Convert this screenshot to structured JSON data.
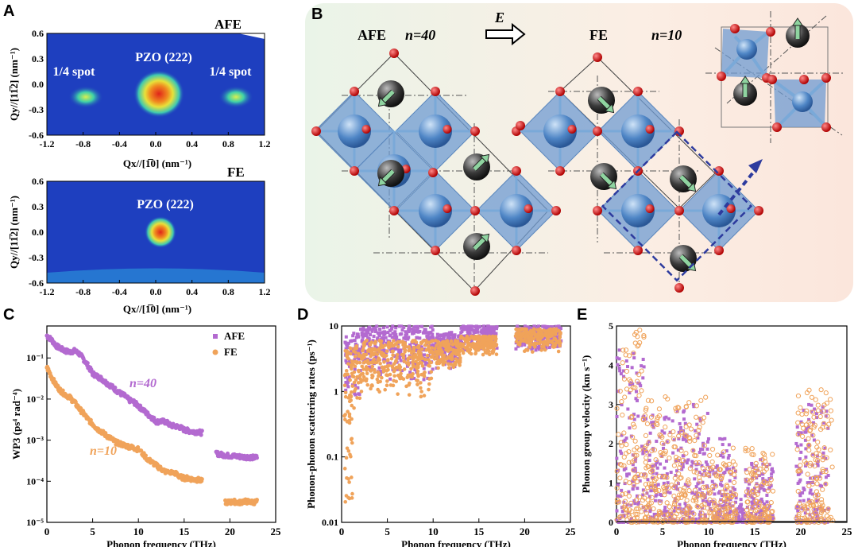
{
  "panels": {
    "A": {
      "letter": "A",
      "top": {
        "label": "AFE",
        "annot_left": "1/4 spot",
        "annot_center": "PZO (222)",
        "annot_right": "1/4 spot",
        "ylabel": "Qy//[11̅2] (nm⁻¹)",
        "xlabel": "Qx//[1̅0] (nm⁻¹)"
      },
      "bottom": {
        "label": "FE",
        "annot_center": "PZO (222)",
        "ylabel": "Qy//[11̅2] (nm⁻¹)",
        "xlabel": "Qx//[1̅0] (nm⁻¹)"
      },
      "xticks": [
        "-1.2",
        "-0.8",
        "-0.4",
        "0.0",
        "0.4",
        "0.8",
        "1.2"
      ],
      "yticks": [
        "0.6",
        "0.3",
        "0.0",
        "-0.3",
        "-0.6"
      ],
      "colors": {
        "bg": "#1e3fbf",
        "spot_outer": "#3fc9b0",
        "spot_mid": "#e8e13a",
        "spot_core": "#e0241a"
      }
    },
    "B": {
      "letter": "B",
      "afe_label": "AFE",
      "afe_n": "n=40",
      "field_label": "E",
      "fe_label": "FE",
      "fe_n": "n=10",
      "colors": {
        "octahedron": "#6f9bd1",
        "oxygen": "#d01a1a",
        "pb": "#3a3a3a",
        "zr": "#4f86c6",
        "arrow": "#8fd4a0",
        "dash": "#2d3b9e"
      }
    }
  },
  "chart_data": [
    {
      "panel": "C",
      "type": "scatter",
      "ylabel": "WP3 (ps⁴ rad⁻⁴)",
      "xlabel": "Phonon frequency (THz)",
      "xlim": [
        0,
        25
      ],
      "ylim": [
        1e-05,
        0.6
      ],
      "yscale": "log",
      "xticks": [
        "0",
        "5",
        "10",
        "15",
        "20",
        "25"
      ],
      "yticks": [
        "10⁻¹",
        "10⁻²",
        "10⁻³",
        "10⁻⁴",
        "10⁻⁵"
      ],
      "legend": "top-right",
      "annotations": [
        "n=40",
        "n=10"
      ],
      "series": [
        {
          "name": "AFE",
          "color": "#b36ad0",
          "x": [
            0,
            0.5,
            1,
            1.5,
            2,
            2.5,
            3,
            3.5,
            4,
            4.5,
            5,
            5.5,
            6,
            6.5,
            7,
            7.5,
            8,
            8.5,
            9,
            9.5,
            10,
            10.5,
            11,
            11.5,
            12,
            12.5,
            13,
            13.5,
            14,
            14.5,
            15,
            15.5,
            16,
            16.5,
            17,
            18.5,
            19,
            19.5,
            20,
            20.5,
            21,
            21.5,
            22,
            22.5,
            23
          ],
          "y": [
            0.35,
            0.28,
            0.2,
            0.17,
            0.15,
            0.14,
            0.15,
            0.13,
            0.095,
            0.065,
            0.042,
            0.036,
            0.031,
            0.025,
            0.021,
            0.017,
            0.014,
            0.012,
            0.0095,
            0.0085,
            0.0068,
            0.0055,
            0.0043,
            0.0035,
            0.0028,
            0.0029,
            0.0028,
            0.0023,
            0.0022,
            0.0021,
            0.0018,
            0.0017,
            0.0016,
            0.0016,
            0.0015,
            0.00048,
            0.00045,
            0.00043,
            0.00042,
            0.00041,
            0.0004,
            0.00039,
            0.00039,
            0.00038,
            0.00038
          ]
        },
        {
          "name": "FE",
          "color": "#f0a35a",
          "x": [
            0,
            0.5,
            1,
            1.5,
            2,
            2.5,
            3,
            3.5,
            4,
            4.5,
            5,
            5.5,
            6,
            6.5,
            7,
            7.5,
            8,
            8.5,
            9,
            9.5,
            10,
            11,
            11.5,
            12,
            12.5,
            13,
            14,
            14.5,
            15,
            15.5,
            16,
            16.5,
            17,
            19.5,
            20,
            20.5,
            21,
            21.5,
            22,
            22.5,
            23
          ],
          "y": [
            0.06,
            0.035,
            0.022,
            0.016,
            0.013,
            0.011,
            0.0085,
            0.006,
            0.0045,
            0.0032,
            0.0025,
            0.0019,
            0.0016,
            0.0013,
            0.0011,
            0.0009,
            0.00082,
            0.00075,
            0.0007,
            0.00065,
            0.0006,
            0.00035,
            0.00029,
            0.00024,
            0.0002,
            0.00017,
            0.00016,
            0.00013,
            0.00012,
            0.00012,
            0.00011,
            0.00011,
            0.0001,
            3.1e-05,
            3.1e-05,
            3.2e-05,
            3e-05,
            3.3e-05,
            3.2e-05,
            3.1e-05,
            3.2e-05
          ]
        }
      ]
    },
    {
      "panel": "D",
      "type": "scatter",
      "ylabel": "Phonon-phonon scattering rates (ps⁻¹)",
      "xlabel": "Phonon frequency (THz)",
      "xlim": [
        0,
        25
      ],
      "ylim": [
        0.01,
        10
      ],
      "yscale": "log",
      "xticks": [
        "0",
        "5",
        "10",
        "15",
        "20",
        "25"
      ],
      "yticks": [
        "10",
        "1",
        "0.1",
        "0.01"
      ],
      "series": [
        {
          "name": "AFE",
          "color": "#b36ad0",
          "bands": [
            [
              0.3,
              2,
              0.8,
              8
            ],
            [
              2,
              10,
              1.5,
              10
            ],
            [
              10,
              13,
              2,
              8
            ],
            [
              13,
              17,
              4,
              10
            ],
            [
              19,
              24,
              4,
              10
            ]
          ]
        },
        {
          "name": "FE",
          "color": "#f0a35a",
          "bands": [
            [
              0.3,
              2,
              0.3,
              5
            ],
            [
              2,
              10,
              0.8,
              6
            ],
            [
              10,
              13,
              2,
              6
            ],
            [
              13,
              17,
              3.5,
              7
            ],
            [
              19,
              24,
              4,
              9
            ]
          ]
        }
      ]
    },
    {
      "panel": "E",
      "type": "scatter",
      "ylabel": "Phonon group velocity (km s⁻¹)",
      "xlabel": "Phonon frequency (THz)",
      "xlim": [
        0,
        25
      ],
      "ylim": [
        0,
        5
      ],
      "xticks": [
        "0",
        "5",
        "10",
        "15",
        "20",
        "25"
      ],
      "yticks": [
        "0",
        "1",
        "2",
        "3",
        "4",
        "5"
      ],
      "series": [
        {
          "name": "AFE",
          "color": "#b36ad0",
          "bands": [
            [
              0,
              3,
              4.5
            ],
            [
              3,
              10,
              3.0
            ],
            [
              10,
              13,
              2.2
            ],
            [
              13,
              14,
              0.6
            ],
            [
              14,
              17,
              1.6
            ],
            [
              19.5,
              23,
              3.0
            ]
          ]
        },
        {
          "name": "FE",
          "color": "#f0a35a",
          "bands": [
            [
              0,
              3,
              5.0
            ],
            [
              3,
              10,
              3.2
            ],
            [
              10,
              13,
              1.9
            ],
            [
              14,
              17,
              1.9
            ],
            [
              19.5,
              23.5,
              3.4
            ]
          ]
        }
      ]
    }
  ]
}
